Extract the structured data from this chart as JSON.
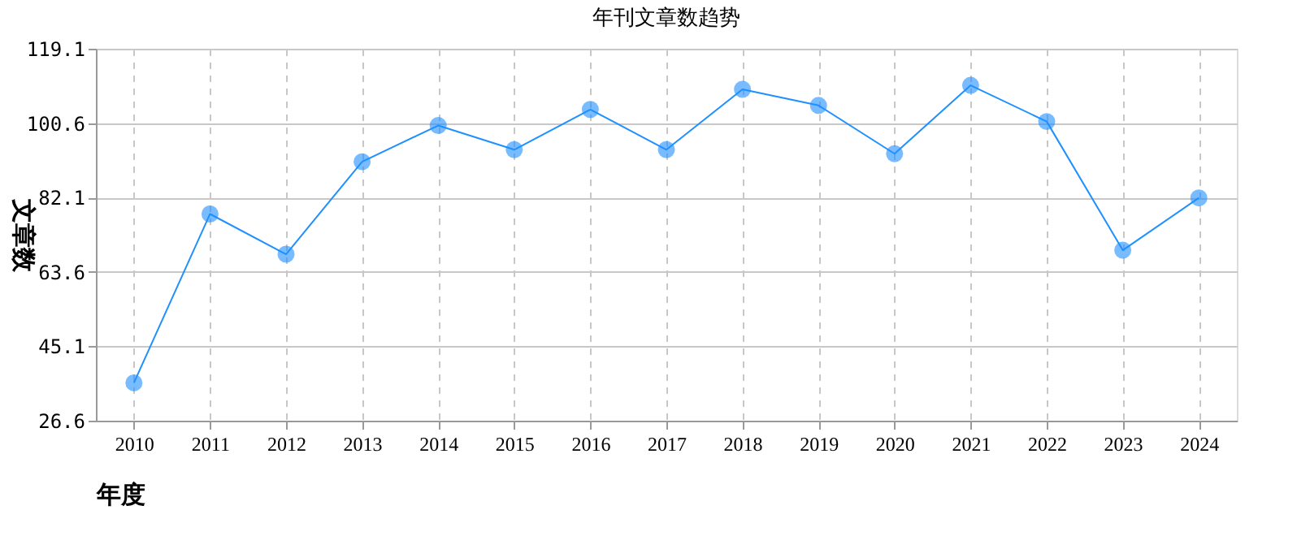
{
  "chart_data": {
    "type": "line",
    "title": "年刊文章数趋势",
    "xlabel": "年度",
    "ylabel": "文章数",
    "categories": [
      "2010",
      "2011",
      "2012",
      "2013",
      "2014",
      "2015",
      "2016",
      "2017",
      "2018",
      "2019",
      "2020",
      "2021",
      "2022",
      "2023",
      "2024"
    ],
    "series": [
      {
        "color": "#1e90ff",
        "values": [
          36,
          78,
          68,
          91,
          100,
          94,
          104,
          94,
          109,
          105,
          93,
          110,
          101,
          69,
          82
        ]
      }
    ],
    "ylim": [
      26.6,
      119.1
    ],
    "yticks": [
      26.6,
      45.1,
      63.6,
      82.1,
      100.6,
      119.1
    ],
    "grid": true,
    "marker": "circle",
    "line_style": "solid"
  }
}
